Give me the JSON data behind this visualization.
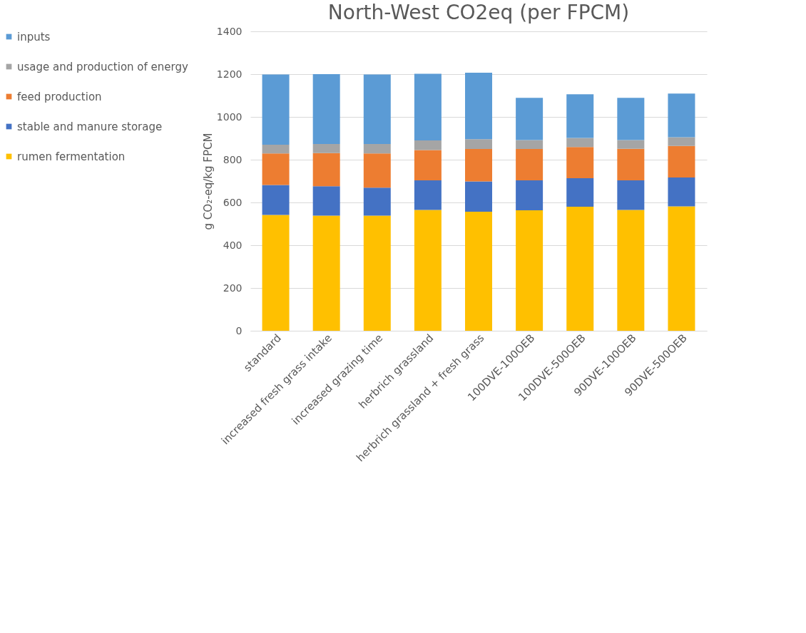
{
  "chart_data": {
    "type": "bar",
    "title": "North-West CO2eq (per FPCM)",
    "ylabel": "g CO₂-eq/kg FPCM",
    "categories": [
      "standard",
      "increased fresh grass intake",
      "increased grazing time",
      "herbrich grassland",
      "herbrich grassland + fresh grass",
      "100DVE-100OEB",
      "100DVE-500OEB",
      "90DVE-100OEB",
      "90DVE-500OEB"
    ],
    "stacked": true,
    "series": [
      {
        "name": "rumen fermentation",
        "color": "#ffc000",
        "values": [
          542,
          538,
          538,
          565,
          557,
          563,
          580,
          565,
          582
        ]
      },
      {
        "name": "stable and manure storage",
        "color": "#4472c4",
        "values": [
          140,
          138,
          131,
          138,
          141,
          140,
          133,
          138,
          135
        ]
      },
      {
        "name": "feed production",
        "color": "#ed7d31",
        "values": [
          147,
          155,
          160,
          142,
          152,
          147,
          146,
          148,
          147
        ]
      },
      {
        "name": "usage and production of energy",
        "color": "#a5a5a5",
        "values": [
          41,
          42,
          44,
          45,
          46,
          42,
          43,
          41,
          41
        ]
      },
      {
        "name": "inputs",
        "color": "#5b9bd5",
        "values": [
          328,
          327,
          325,
          312,
          311,
          197,
          204,
          197,
          204
        ]
      }
    ],
    "ylim": [
      0,
      1400
    ],
    "yticks": [
      0,
      200,
      400,
      600,
      800,
      1000,
      1200,
      1400
    ],
    "grid": "y",
    "legend": "left"
  }
}
